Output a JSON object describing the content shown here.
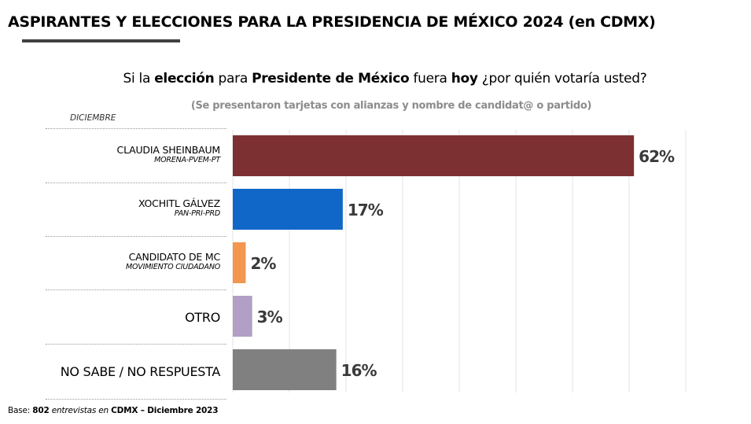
{
  "header": {
    "title": "ASPIRANTES Y ELECCIONES PARA LA PRESIDENCIA DE MÉXICO 2024 (en CDMX)"
  },
  "question": {
    "p1": "Si la ",
    "p2": "elección",
    "p3": " para ",
    "p4": "Presidente de México",
    "p5": " fuera ",
    "p6": "hoy",
    "p7": " ¿por quién votaría usted?"
  },
  "note": "(Se presentaron tarjetas con alianzas y nombre de candidat@ o partido)",
  "month_label": "DICIEMBRE",
  "footer": {
    "base_label": "Base: ",
    "count": "802",
    "middle": " entrevistas en ",
    "place": "CDMX",
    "dash_date": " – Diciembre 2023"
  },
  "chart_data": {
    "type": "bar",
    "orientation": "horizontal",
    "title": "Si la elección para Presidente de México fuera hoy ¿por quién votaría usted?",
    "xlabel": "",
    "ylabel": "",
    "xlim": [
      0,
      70
    ],
    "grid": true,
    "categories": [
      {
        "name": "CLAUDIA SHEINBAUM",
        "party": "MORENA-PVEM-PT"
      },
      {
        "name": "XOCHITL GÁLVEZ",
        "party": "PAN-PRI-PRD"
      },
      {
        "name": "CANDIDATO DE MC",
        "party": "MOVIMIENTO CIUDADANO"
      },
      {
        "name": "OTRO",
        "party": ""
      },
      {
        "name": "NO SABE / NO RESPUESTA",
        "party": ""
      }
    ],
    "values": [
      62,
      17,
      2,
      3,
      16
    ],
    "value_labels": [
      "62%",
      "17%",
      "2%",
      "3%",
      "16%"
    ],
    "colors": [
      "#7d3031",
      "#1167c8",
      "#f29650",
      "#b19fc5",
      "#808080"
    ]
  }
}
